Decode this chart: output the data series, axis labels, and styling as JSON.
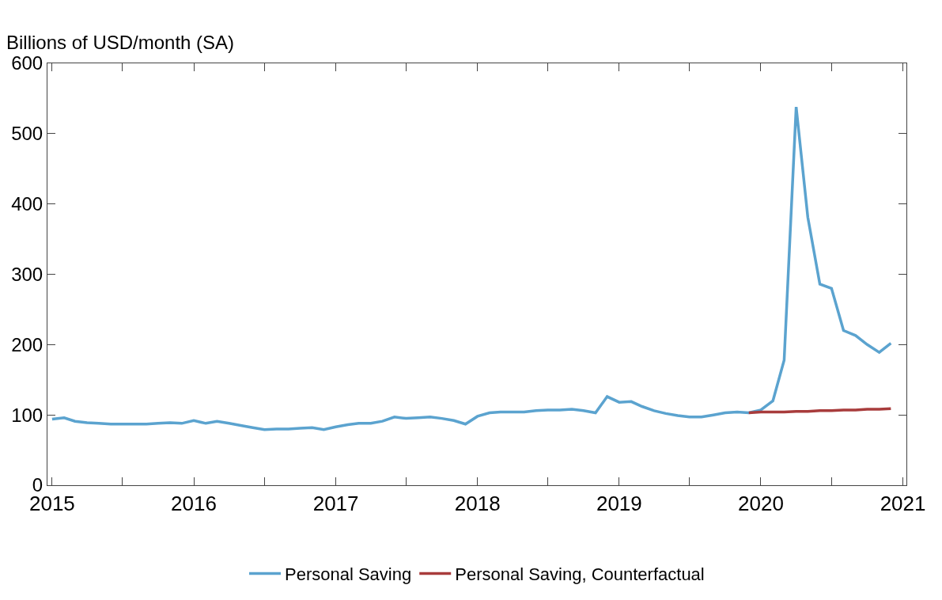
{
  "chart_data": {
    "type": "line",
    "ylabel": "Billions of USD/month (SA)",
    "x": [
      "2015-01",
      "2015-02",
      "2015-03",
      "2015-04",
      "2015-05",
      "2015-06",
      "2015-07",
      "2015-08",
      "2015-09",
      "2015-10",
      "2015-11",
      "2015-12",
      "2016-01",
      "2016-02",
      "2016-03",
      "2016-04",
      "2016-05",
      "2016-06",
      "2016-07",
      "2016-08",
      "2016-09",
      "2016-10",
      "2016-11",
      "2016-12",
      "2017-01",
      "2017-02",
      "2017-03",
      "2017-04",
      "2017-05",
      "2017-06",
      "2017-07",
      "2017-08",
      "2017-09",
      "2017-10",
      "2017-11",
      "2017-12",
      "2018-01",
      "2018-02",
      "2018-03",
      "2018-04",
      "2018-05",
      "2018-06",
      "2018-07",
      "2018-08",
      "2018-09",
      "2018-10",
      "2018-11",
      "2018-12",
      "2019-01",
      "2019-02",
      "2019-03",
      "2019-04",
      "2019-05",
      "2019-06",
      "2019-07",
      "2019-08",
      "2019-09",
      "2019-10",
      "2019-11",
      "2019-12",
      "2020-01",
      "2020-02",
      "2020-03",
      "2020-04",
      "2020-05",
      "2020-06",
      "2020-07",
      "2020-08",
      "2020-09",
      "2020-10",
      "2020-11",
      "2020-12"
    ],
    "series": [
      {
        "name": "Personal Saving",
        "color": "#5ba3cf",
        "values": [
          94,
          96,
          91,
          89,
          88,
          87,
          87,
          87,
          87,
          88,
          89,
          88,
          92,
          88,
          91,
          88,
          85,
          82,
          79,
          80,
          80,
          81,
          82,
          79,
          83,
          86,
          88,
          88,
          91,
          97,
          95,
          96,
          97,
          95,
          92,
          87,
          98,
          103,
          104,
          104,
          104,
          106,
          107,
          107,
          108,
          106,
          103,
          126,
          118,
          119,
          112,
          106,
          102,
          99,
          97,
          97,
          100,
          103,
          104,
          103,
          107,
          120,
          178,
          538,
          381,
          286,
          280,
          220,
          213,
          200,
          189,
          202
        ]
      },
      {
        "name": "Personal Saving, Counterfactual",
        "color": "#a83c3c",
        "x": [
          "2019-12",
          "2020-01",
          "2020-02",
          "2020-03",
          "2020-04",
          "2020-05",
          "2020-06",
          "2020-07",
          "2020-08",
          "2020-09",
          "2020-10",
          "2020-11",
          "2020-12"
        ],
        "values": [
          103,
          104,
          104,
          104,
          105,
          105,
          106,
          106,
          107,
          107,
          108,
          108,
          109
        ]
      }
    ],
    "xlim": [
      "2014-12-20",
      "2021-01-10"
    ],
    "xticks": [
      {
        "value": "2015-01-01",
        "label": "2015"
      },
      {
        "value": "2015-07-01",
        "label": null
      },
      {
        "value": "2016-01-01",
        "label": "2016"
      },
      {
        "value": "2016-07-01",
        "label": null
      },
      {
        "value": "2017-01-01",
        "label": "2017"
      },
      {
        "value": "2017-07-01",
        "label": null
      },
      {
        "value": "2018-01-01",
        "label": "2018"
      },
      {
        "value": "2018-07-01",
        "label": null
      },
      {
        "value": "2019-01-01",
        "label": "2019"
      },
      {
        "value": "2019-07-01",
        "label": null
      },
      {
        "value": "2020-01-01",
        "label": "2020"
      },
      {
        "value": "2020-07-01",
        "label": null
      },
      {
        "value": "2021-01-01",
        "label": "2021"
      }
    ],
    "ylim": [
      0,
      600
    ],
    "yticks": [
      0,
      100,
      200,
      300,
      400,
      500,
      600
    ],
    "legend": "bottom",
    "marker": "none",
    "line_style": "solid"
  }
}
